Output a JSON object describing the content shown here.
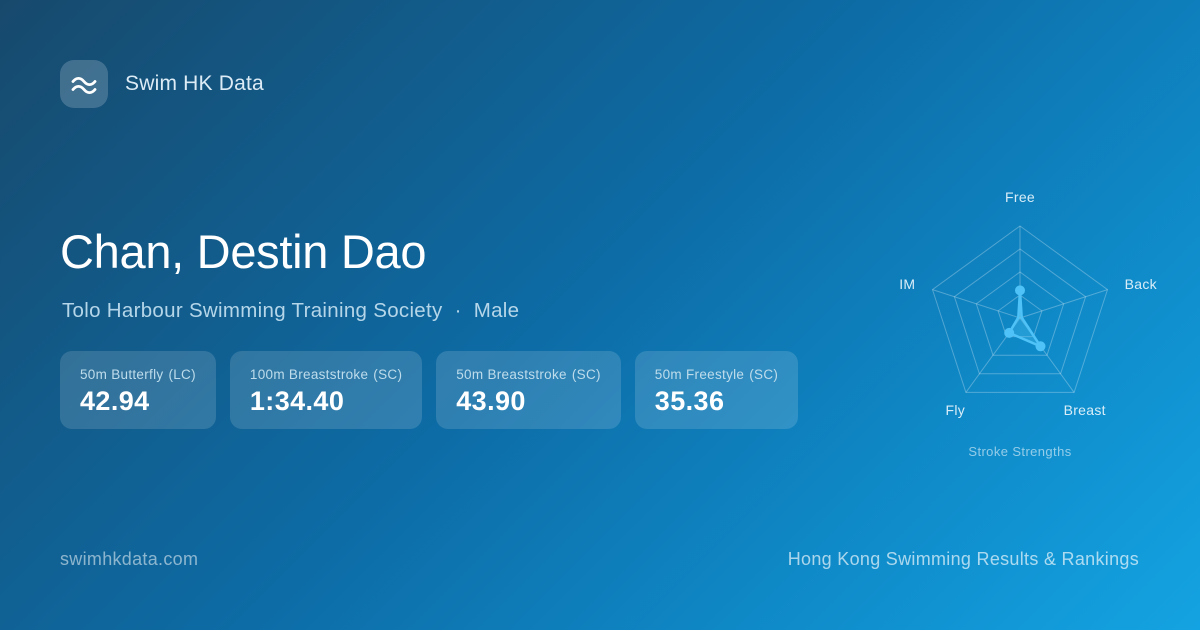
{
  "brand": {
    "name": "Swim HK Data"
  },
  "swimmer": {
    "name": "Chan, Destin Dao",
    "club": "Tolo Harbour Swimming Training Society",
    "separator": "·",
    "gender": "Male"
  },
  "stats": [
    {
      "event": "50m Butterfly",
      "course": "(LC)",
      "time": "42.94"
    },
    {
      "event": "100m Breaststroke",
      "course": "(SC)",
      "time": "1:34.40"
    },
    {
      "event": "50m Breaststroke",
      "course": "(SC)",
      "time": "43.90"
    },
    {
      "event": "50m Freestyle",
      "course": "(SC)",
      "time": "35.36"
    }
  ],
  "chart_data": {
    "type": "radar",
    "title": "Stroke Strengths",
    "axes": [
      "Free",
      "Back",
      "Breast",
      "Fly",
      "IM"
    ],
    "values": [
      0.3,
      0.02,
      0.38,
      0.2,
      0.02
    ],
    "max": 1,
    "rings": 4,
    "accent": "#4fc3f7",
    "fill": "rgba(79,195,247,0.32)",
    "grid_color": "rgba(255,255,255,0.28)",
    "label_color": "#d9edf8",
    "legend_position": "none"
  },
  "footer": {
    "left": "swimhkdata.com",
    "right": "Hong Kong Swimming Results & Rankings"
  },
  "colors": {
    "bg_top_left": "#17496c",
    "bg_bottom_right": "#14a3e2",
    "card_bg": "rgba(255,255,255,0.14)",
    "accent": "#4fc3f7"
  }
}
